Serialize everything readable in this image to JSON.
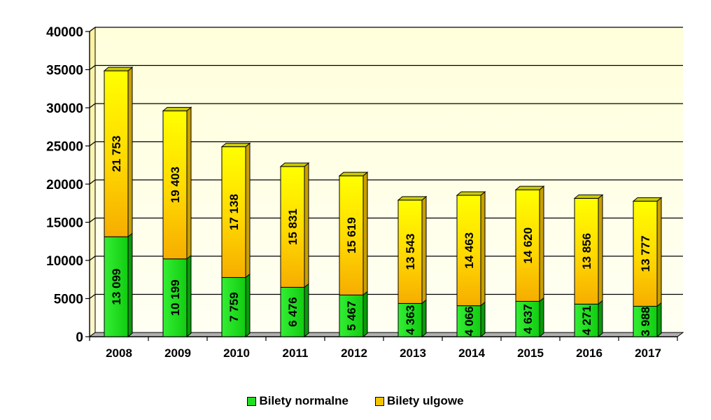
{
  "chart_data": {
    "type": "bar",
    "stacked": true,
    "categories": [
      "2008",
      "2009",
      "2010",
      "2011",
      "2012",
      "2013",
      "2014",
      "2015",
      "2016",
      "2017"
    ],
    "series": [
      {
        "name": "Bilety normalne",
        "color": "#22dd22",
        "values": [
          13099,
          10199,
          7759,
          6476,
          5467,
          4363,
          4066,
          4637,
          4271,
          3988
        ],
        "labels": [
          "13 099",
          "10 199",
          "7 759",
          "6 476",
          "5 467",
          "4 363",
          "4 066",
          "4 637",
          "4 271",
          "3 988"
        ]
      },
      {
        "name": "Bilety ulgowe",
        "color": "#f5c400",
        "values": [
          21753,
          19403,
          17138,
          15831,
          15619,
          13543,
          14463,
          14620,
          13856,
          13777
        ],
        "labels": [
          "21 753",
          "19 403",
          "17 138",
          "15 831",
          "15 619",
          "13 543",
          "14 463",
          "14 620",
          "13 856",
          "13 777"
        ]
      }
    ],
    "yticks": [
      "0",
      "5000",
      "10000",
      "15000",
      "20000",
      "25000",
      "30000",
      "35000",
      "40000"
    ],
    "ylim": [
      0,
      40000
    ],
    "grid": true,
    "legend_position": "bottom"
  }
}
